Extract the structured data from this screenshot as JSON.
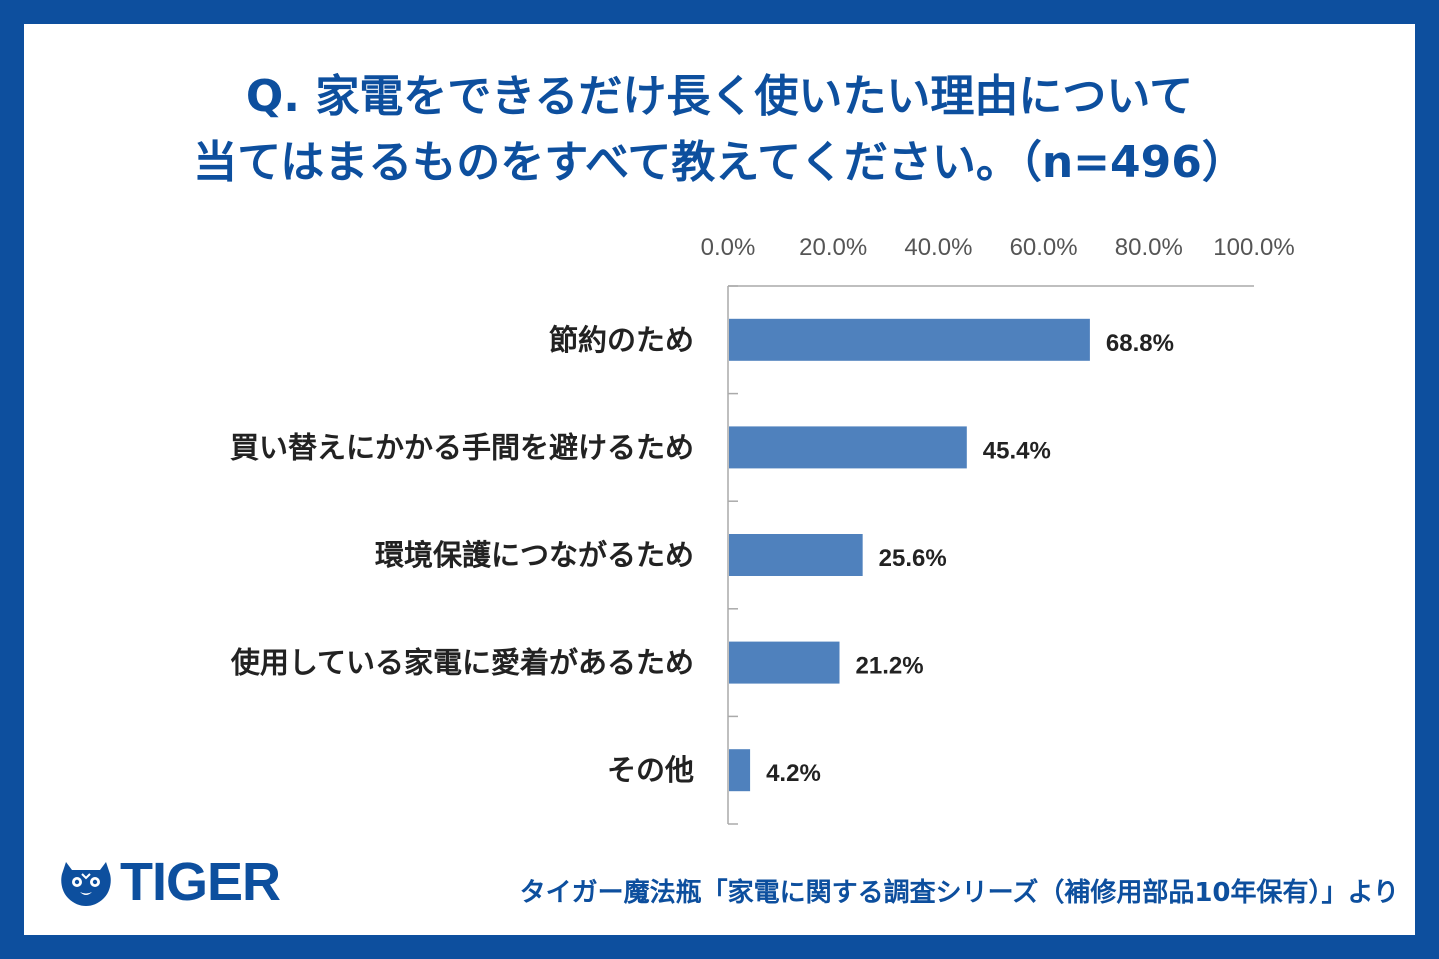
{
  "title": {
    "line1": "Q. 家電をできるだけ長く使いたい理由について",
    "line2": "当てはまるものをすべて教えてください。（n=496）"
  },
  "chart_data": {
    "type": "bar",
    "orientation": "horizontal",
    "categories": [
      "節約のため",
      "買い替えにかかる手間を避けるため",
      "環境保護につながるため",
      "使用している家電に愛着があるため",
      "その他"
    ],
    "values": [
      68.8,
      45.4,
      25.6,
      21.2,
      4.2
    ],
    "value_labels": [
      "68.8%",
      "45.4%",
      "25.6%",
      "21.2%",
      "4.2%"
    ],
    "xlim": [
      0,
      100
    ],
    "x_ticks": [
      "0.0%",
      "20.0%",
      "40.0%",
      "60.0%",
      "80.0%",
      "100.0%"
    ],
    "x_axis_position": "top",
    "grid": false,
    "bar_color": "#4f81bd"
  },
  "brand": {
    "logo_text": "TIGER",
    "logo_icon": "tiger-face-icon",
    "color": "#0d4f9e"
  },
  "source": "タイガー魔法瓶「家電に関する調査シリーズ（補修用部品10年保有）」より"
}
